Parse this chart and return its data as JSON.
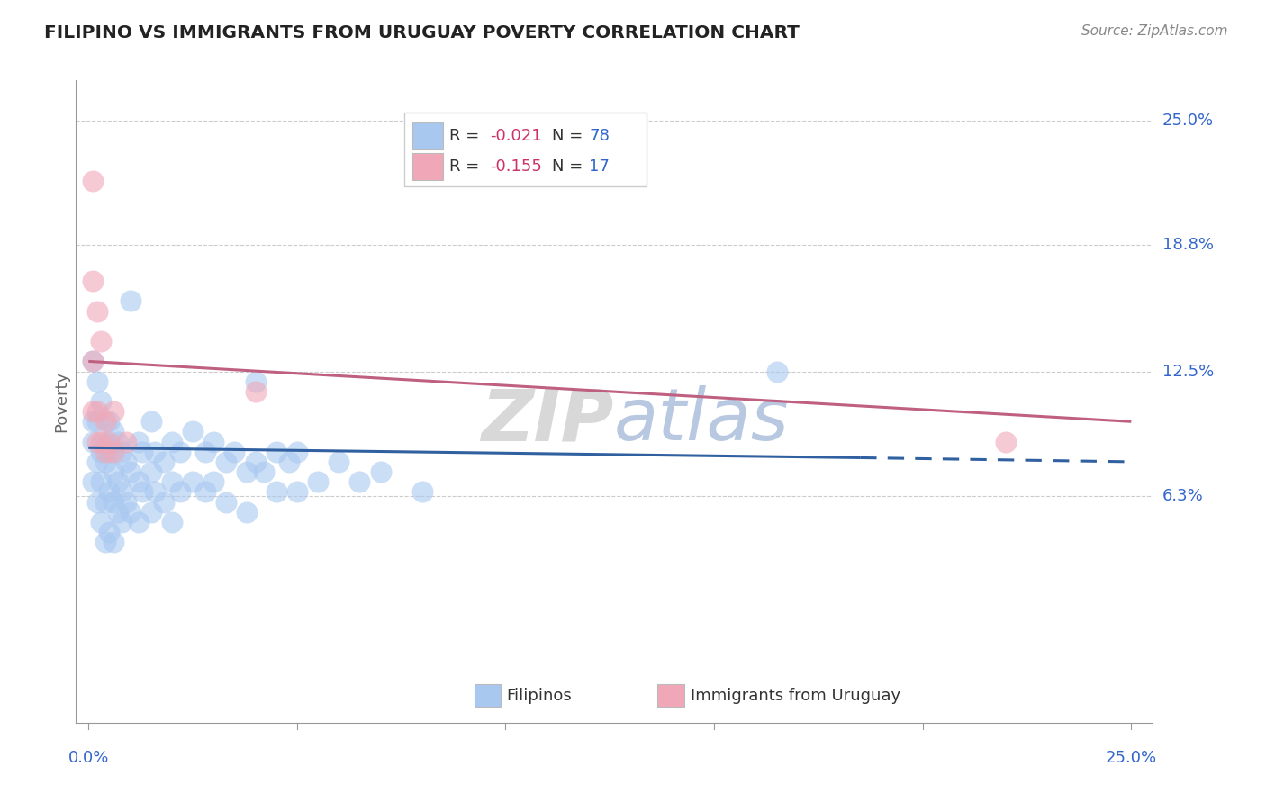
{
  "title": "FILIPINO VS IMMIGRANTS FROM URUGUAY POVERTY CORRELATION CHART",
  "source": "Source: ZipAtlas.com",
  "ylabel": "Poverty",
  "ytick_labels": [
    "25.0%",
    "18.8%",
    "12.5%",
    "6.3%"
  ],
  "ytick_values": [
    0.25,
    0.188,
    0.125,
    0.063
  ],
  "xrange": [
    0.0,
    0.25
  ],
  "yrange": [
    -0.05,
    0.27
  ],
  "filipino_color": "#a8c8f0",
  "uruguay_color": "#f0a8b8",
  "filipino_line_color": "#3060a0",
  "uruguay_line_color": "#c06080",
  "r_color": "#cc3366",
  "n_color": "#3366cc",
  "watermark": "ZIPatlas",
  "filipino_points": [
    [
      0.001,
      0.13
    ],
    [
      0.001,
      0.1
    ],
    [
      0.001,
      0.09
    ],
    [
      0.001,
      0.07
    ],
    [
      0.002,
      0.12
    ],
    [
      0.002,
      0.1
    ],
    [
      0.002,
      0.08
    ],
    [
      0.002,
      0.06
    ],
    [
      0.003,
      0.11
    ],
    [
      0.003,
      0.085
    ],
    [
      0.003,
      0.07
    ],
    [
      0.003,
      0.05
    ],
    [
      0.004,
      0.09
    ],
    [
      0.004,
      0.08
    ],
    [
      0.004,
      0.06
    ],
    [
      0.004,
      0.04
    ],
    [
      0.005,
      0.1
    ],
    [
      0.005,
      0.085
    ],
    [
      0.005,
      0.065
    ],
    [
      0.005,
      0.045
    ],
    [
      0.006,
      0.095
    ],
    [
      0.006,
      0.075
    ],
    [
      0.006,
      0.06
    ],
    [
      0.006,
      0.04
    ],
    [
      0.007,
      0.09
    ],
    [
      0.007,
      0.07
    ],
    [
      0.007,
      0.055
    ],
    [
      0.008,
      0.085
    ],
    [
      0.008,
      0.065
    ],
    [
      0.008,
      0.05
    ],
    [
      0.009,
      0.08
    ],
    [
      0.009,
      0.06
    ],
    [
      0.01,
      0.16
    ],
    [
      0.01,
      0.075
    ],
    [
      0.01,
      0.055
    ],
    [
      0.012,
      0.09
    ],
    [
      0.012,
      0.07
    ],
    [
      0.012,
      0.05
    ],
    [
      0.013,
      0.085
    ],
    [
      0.013,
      0.065
    ],
    [
      0.015,
      0.1
    ],
    [
      0.015,
      0.075
    ],
    [
      0.015,
      0.055
    ],
    [
      0.016,
      0.085
    ],
    [
      0.016,
      0.065
    ],
    [
      0.018,
      0.08
    ],
    [
      0.018,
      0.06
    ],
    [
      0.02,
      0.09
    ],
    [
      0.02,
      0.07
    ],
    [
      0.02,
      0.05
    ],
    [
      0.022,
      0.085
    ],
    [
      0.022,
      0.065
    ],
    [
      0.025,
      0.095
    ],
    [
      0.025,
      0.07
    ],
    [
      0.028,
      0.085
    ],
    [
      0.028,
      0.065
    ],
    [
      0.03,
      0.09
    ],
    [
      0.03,
      0.07
    ],
    [
      0.033,
      0.08
    ],
    [
      0.033,
      0.06
    ],
    [
      0.035,
      0.085
    ],
    [
      0.038,
      0.075
    ],
    [
      0.038,
      0.055
    ],
    [
      0.04,
      0.12
    ],
    [
      0.04,
      0.08
    ],
    [
      0.042,
      0.075
    ],
    [
      0.045,
      0.085
    ],
    [
      0.045,
      0.065
    ],
    [
      0.048,
      0.08
    ],
    [
      0.05,
      0.085
    ],
    [
      0.05,
      0.065
    ],
    [
      0.055,
      0.07
    ],
    [
      0.06,
      0.08
    ],
    [
      0.065,
      0.07
    ],
    [
      0.07,
      0.075
    ],
    [
      0.08,
      0.065
    ],
    [
      0.165,
      0.125
    ]
  ],
  "uruguay_points": [
    [
      0.001,
      0.22
    ],
    [
      0.001,
      0.17
    ],
    [
      0.001,
      0.13
    ],
    [
      0.001,
      0.105
    ],
    [
      0.002,
      0.155
    ],
    [
      0.002,
      0.105
    ],
    [
      0.002,
      0.09
    ],
    [
      0.003,
      0.14
    ],
    [
      0.003,
      0.09
    ],
    [
      0.004,
      0.1
    ],
    [
      0.004,
      0.085
    ],
    [
      0.005,
      0.09
    ],
    [
      0.006,
      0.105
    ],
    [
      0.006,
      0.085
    ],
    [
      0.009,
      0.09
    ],
    [
      0.04,
      0.115
    ],
    [
      0.22,
      0.09
    ]
  ]
}
